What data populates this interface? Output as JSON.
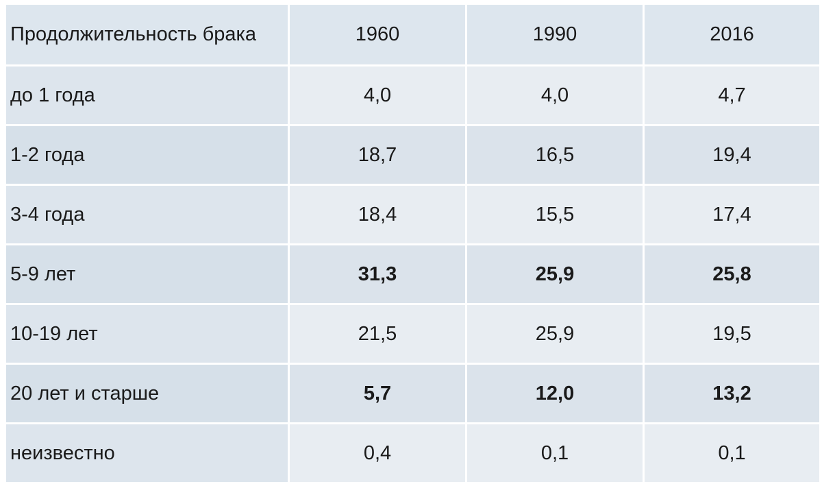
{
  "table": {
    "header": [
      "Продолжительность брака",
      "1960",
      "1990",
      "2016"
    ],
    "rows": [
      {
        "label": "до 1 года",
        "values": [
          "4,0",
          "4,0",
          "4,7"
        ],
        "bold": false
      },
      {
        "label": "1-2 года",
        "values": [
          "18,7",
          "16,5",
          "19,4"
        ],
        "bold": false
      },
      {
        "label": "3-4 года",
        "values": [
          "18,4",
          "15,5",
          "17,4"
        ],
        "bold": false
      },
      {
        "label": "5-9 лет",
        "values": [
          "31,3",
          "25,9",
          "25,8"
        ],
        "bold": true
      },
      {
        "label": "10-19 лет",
        "values": [
          "21,5",
          "25,9",
          "19,5"
        ],
        "bold": false
      },
      {
        "label": "20 лет и старше",
        "values": [
          "5,7",
          "12,0",
          "13,2"
        ],
        "bold": true
      },
      {
        "label": "неизвестно",
        "values": [
          "0,4",
          "0,1",
          "0,1"
        ],
        "bold": false
      }
    ]
  }
}
